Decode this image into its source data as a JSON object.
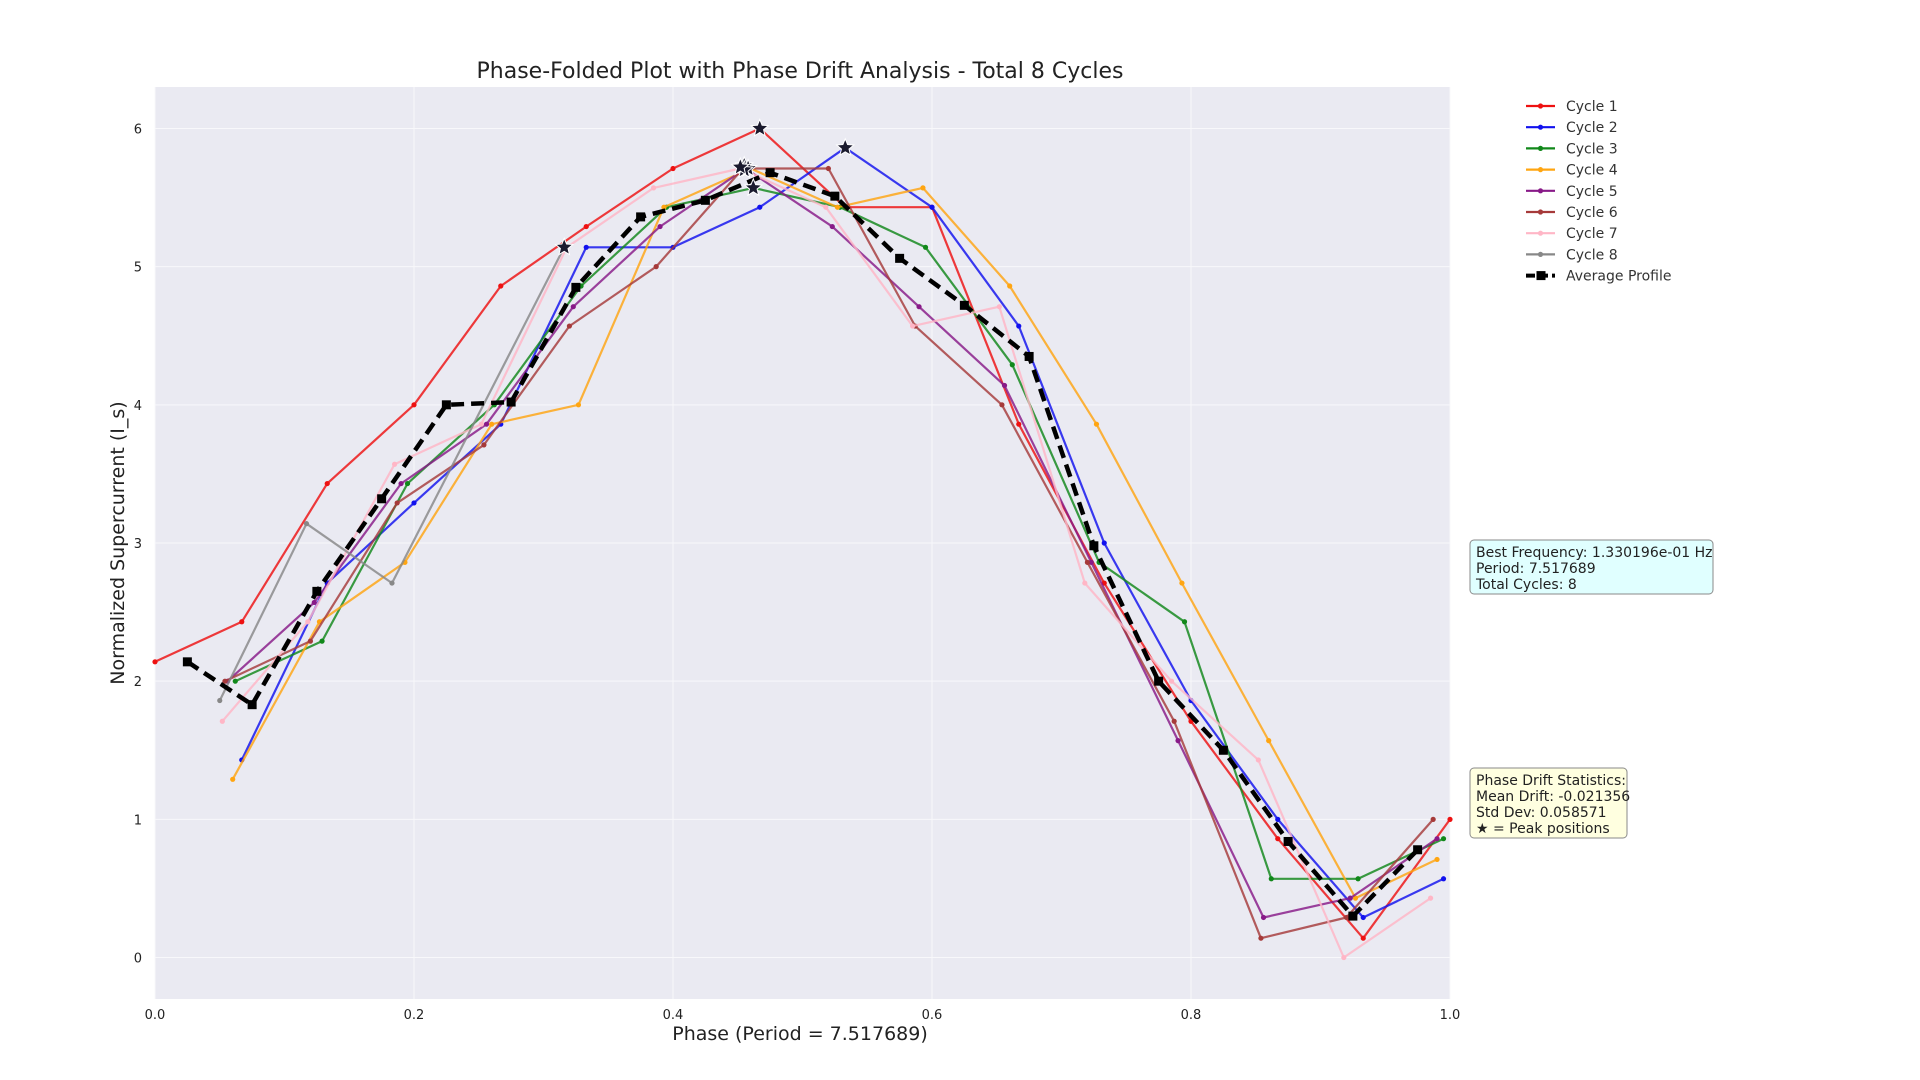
{
  "chart_data": {
    "type": "line",
    "title": "Phase-Folded Plot with Phase Drift Analysis - Total 8 Cycles",
    "xlabel": "Phase (Period = 7.517689)",
    "ylabel": "Normalized Supercurrent (I_s)",
    "xlim": [
      0.0,
      1.0
    ],
    "ylim": [
      -0.3,
      6.3
    ],
    "x_ticks": [
      "0.0",
      "0.2",
      "0.4",
      "0.6",
      "0.8",
      "1.0"
    ],
    "y_ticks": [
      "0",
      "1",
      "2",
      "3",
      "4",
      "5",
      "6"
    ],
    "grid": true,
    "legend_position": "outside-top-right",
    "series": [
      {
        "name": "Cycle 1",
        "color": "#ee1111",
        "x": [
          0.0,
          0.067,
          0.133,
          0.2,
          0.267,
          0.333,
          0.4,
          0.467,
          0.533,
          0.6,
          0.667,
          0.733,
          0.8,
          0.867,
          0.933,
          1.0
        ],
        "y": [
          2.14,
          2.43,
          3.43,
          4.0,
          4.86,
          5.29,
          5.71,
          6.0,
          5.43,
          5.43,
          3.86,
          2.71,
          1.71,
          0.86,
          0.14,
          1.0
        ]
      },
      {
        "name": "Cycle 2",
        "color": "#1111ee",
        "x": [
          0.067,
          0.133,
          0.2,
          0.267,
          0.333,
          0.4,
          0.467,
          0.533,
          0.6,
          0.667,
          0.733,
          0.8,
          0.867,
          0.933,
          0.995
        ],
        "y": [
          1.43,
          2.71,
          3.29,
          3.86,
          5.14,
          5.14,
          5.43,
          5.86,
          5.43,
          4.57,
          3.0,
          1.86,
          1.0,
          0.29,
          0.57
        ]
      },
      {
        "name": "Cycle 3",
        "color": "#11881a",
        "x": [
          0.062,
          0.129,
          0.195,
          0.262,
          0.329,
          0.395,
          0.462,
          0.529,
          0.595,
          0.662,
          0.729,
          0.795,
          0.862,
          0.929,
          0.995
        ],
        "y": [
          2.0,
          2.29,
          3.43,
          4.0,
          4.86,
          5.43,
          5.57,
          5.43,
          5.14,
          4.29,
          2.86,
          2.43,
          0.57,
          0.57,
          0.86
        ]
      },
      {
        "name": "Cycle 4",
        "color": "#ffa511",
        "x": [
          0.06,
          0.127,
          0.193,
          0.26,
          0.327,
          0.393,
          0.46,
          0.527,
          0.593,
          0.66,
          0.727,
          0.793,
          0.86,
          0.927,
          0.99
        ],
        "y": [
          1.29,
          2.43,
          2.86,
          3.86,
          4.0,
          5.43,
          5.71,
          5.43,
          5.57,
          4.86,
          3.86,
          2.71,
          1.57,
          0.43,
          0.71
        ]
      },
      {
        "name": "Cycle 5",
        "color": "#881a88",
        "x": [
          0.056,
          0.123,
          0.19,
          0.256,
          0.323,
          0.39,
          0.456,
          0.523,
          0.59,
          0.656,
          0.723,
          0.79,
          0.856,
          0.923,
          0.99
        ],
        "y": [
          2.0,
          2.57,
          3.43,
          3.86,
          4.71,
          5.29,
          5.71,
          5.29,
          4.71,
          4.14,
          2.86,
          1.57,
          0.29,
          0.43,
          0.86
        ]
      },
      {
        "name": "Cycle 6",
        "color": "#a63a3a",
        "x": [
          0.054,
          0.12,
          0.187,
          0.254,
          0.32,
          0.387,
          0.454,
          0.52,
          0.587,
          0.654,
          0.72,
          0.787,
          0.854,
          0.92,
          0.987
        ],
        "y": [
          2.0,
          2.29,
          3.29,
          3.71,
          4.57,
          5.0,
          5.71,
          5.71,
          4.57,
          4.0,
          2.86,
          1.71,
          0.14,
          0.29,
          1.0
        ]
      },
      {
        "name": "Cycle 7",
        "color": "#ffb6c6",
        "x": [
          0.052,
          0.118,
          0.185,
          0.252,
          0.318,
          0.385,
          0.452,
          0.518,
          0.585,
          0.652,
          0.718,
          0.785,
          0.852,
          0.918,
          0.985
        ],
        "y": [
          1.71,
          2.43,
          3.57,
          3.86,
          5.14,
          5.57,
          5.71,
          5.43,
          4.57,
          4.71,
          2.71,
          2.0,
          1.43,
          0.0,
          0.43
        ]
      },
      {
        "name": "Cycle 8",
        "color": "#888888",
        "x": [
          0.05,
          0.117,
          0.183,
          0.316
        ],
        "y": [
          1.86,
          3.14,
          2.71,
          5.14
        ]
      },
      {
        "name": "Average Profile",
        "color": "#000000",
        "dashed": true,
        "x": [
          0.025,
          0.075,
          0.125,
          0.175,
          0.225,
          0.275,
          0.325,
          0.375,
          0.425,
          0.475,
          0.525,
          0.575,
          0.625,
          0.675,
          0.725,
          0.775,
          0.825,
          0.875,
          0.925,
          0.975
        ],
        "y": [
          2.14,
          1.83,
          2.65,
          3.32,
          4.0,
          4.02,
          4.85,
          5.36,
          5.48,
          5.68,
          5.51,
          5.06,
          4.72,
          4.35,
          2.98,
          2.0,
          1.5,
          0.84,
          0.3,
          0.78
        ]
      }
    ],
    "peak_markers": [
      {
        "x": 0.467,
        "y": 6.0
      },
      {
        "x": 0.533,
        "y": 5.86
      },
      {
        "x": 0.462,
        "y": 5.57
      },
      {
        "x": 0.455,
        "y": 5.73
      },
      {
        "x": 0.458,
        "y": 5.71
      },
      {
        "x": 0.455,
        "y": 5.7
      },
      {
        "x": 0.452,
        "y": 5.72
      },
      {
        "x": 0.316,
        "y": 5.14
      }
    ],
    "peak_marker_color": "#1a1a2e",
    "info_box": {
      "lines": [
        "Best Frequency: 1.330196e-01 Hz",
        "Period: 7.517689",
        "Total Cycles: 8"
      ],
      "background": "#e0ffff"
    },
    "drift_box": {
      "lines": [
        "Phase Drift Statistics:",
        "Mean Drift: -0.021356",
        "Std Dev: 0.058571",
        "★ = Peak positions"
      ],
      "background": "#ffffe0"
    },
    "plot_background": "#eaeaf2"
  }
}
